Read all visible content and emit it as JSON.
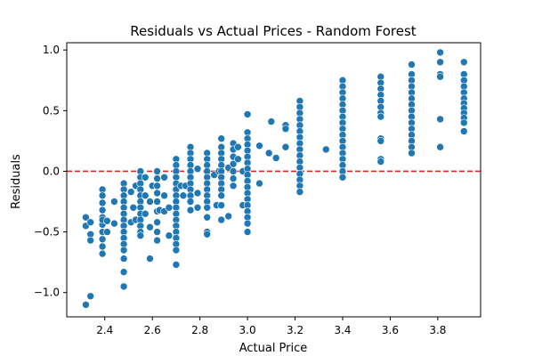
{
  "chart_data": {
    "type": "scatter",
    "title": "Residuals vs Actual Prices - Random Forest",
    "xlabel": "Actual Price",
    "ylabel": "Residuals",
    "xlim": [
      2.24,
      3.98
    ],
    "ylim": [
      -1.2,
      1.06
    ],
    "xticks": [
      2.4,
      2.6,
      2.8,
      3.0,
      3.2,
      3.4,
      3.6,
      3.8
    ],
    "xtick_labels": [
      "2.4",
      "2.6",
      "2.8",
      "3.0",
      "3.2",
      "3.4",
      "3.6",
      "3.8"
    ],
    "yticks": [
      -1.0,
      -0.5,
      0.0,
      0.5,
      1.0
    ],
    "ytick_labels": [
      "−1.0",
      "−0.5",
      "0.0",
      "0.5",
      "1.0"
    ],
    "reference_line": {
      "y": 0.0,
      "color": "#d62728",
      "style": "dashed"
    },
    "marker_color": "#1f77b4",
    "grid": false,
    "points": [
      [
        2.32,
        -0.38
      ],
      [
        2.32,
        -0.45
      ],
      [
        2.32,
        -1.1
      ],
      [
        2.34,
        -1.03
      ],
      [
        2.34,
        -0.42
      ],
      [
        2.34,
        -0.52
      ],
      [
        2.34,
        -0.57
      ],
      [
        2.39,
        -0.15
      ],
      [
        2.39,
        -0.2
      ],
      [
        2.39,
        -0.26
      ],
      [
        2.39,
        -0.32
      ],
      [
        2.39,
        -0.38
      ],
      [
        2.39,
        -0.44
      ],
      [
        2.39,
        -0.5
      ],
      [
        2.39,
        -0.56
      ],
      [
        2.39,
        -0.62
      ],
      [
        2.39,
        -0.68
      ],
      [
        2.39,
        -0.4
      ],
      [
        2.41,
        -0.41
      ],
      [
        2.41,
        -0.5
      ],
      [
        2.44,
        -0.25
      ],
      [
        2.44,
        -0.43
      ],
      [
        2.48,
        -0.1
      ],
      [
        2.48,
        -0.15
      ],
      [
        2.48,
        -0.2
      ],
      [
        2.48,
        -0.25
      ],
      [
        2.48,
        -0.3
      ],
      [
        2.48,
        -0.35
      ],
      [
        2.48,
        -0.4
      ],
      [
        2.48,
        -0.45
      ],
      [
        2.48,
        -0.5
      ],
      [
        2.48,
        -0.55
      ],
      [
        2.48,
        -0.6
      ],
      [
        2.48,
        -0.65
      ],
      [
        2.48,
        -0.72
      ],
      [
        2.48,
        -0.83
      ],
      [
        2.48,
        -0.95
      ],
      [
        2.51,
        -0.17
      ],
      [
        2.51,
        -0.42
      ],
      [
        2.52,
        -0.3
      ],
      [
        2.53,
        -0.12
      ],
      [
        2.53,
        -0.4
      ],
      [
        2.55,
        0.0
      ],
      [
        2.55,
        -0.05
      ],
      [
        2.55,
        -0.1
      ],
      [
        2.55,
        -0.15
      ],
      [
        2.55,
        -0.2
      ],
      [
        2.55,
        -0.25
      ],
      [
        2.55,
        -0.3
      ],
      [
        2.55,
        -0.35
      ],
      [
        2.55,
        -0.4
      ],
      [
        2.55,
        -0.45
      ],
      [
        2.55,
        -0.5
      ],
      [
        2.55,
        -0.53
      ],
      [
        2.57,
        -0.05
      ],
      [
        2.57,
        -0.2
      ],
      [
        2.57,
        -0.35
      ],
      [
        2.59,
        -0.25
      ],
      [
        2.59,
        -0.46
      ],
      [
        2.59,
        -0.72
      ],
      [
        2.6,
        -0.12
      ],
      [
        2.62,
        0.0
      ],
      [
        2.62,
        -0.06
      ],
      [
        2.62,
        -0.12
      ],
      [
        2.62,
        -0.18
      ],
      [
        2.62,
        -0.25
      ],
      [
        2.62,
        -0.33
      ],
      [
        2.62,
        -0.42
      ],
      [
        2.62,
        -0.5
      ],
      [
        2.62,
        -0.57
      ],
      [
        2.63,
        -0.32
      ],
      [
        2.65,
        -0.05
      ],
      [
        2.65,
        -0.2
      ],
      [
        2.65,
        -0.33
      ],
      [
        2.67,
        -0.3
      ],
      [
        2.67,
        -0.53
      ],
      [
        2.7,
        0.1
      ],
      [
        2.7,
        0.05
      ],
      [
        2.7,
        0.0
      ],
      [
        2.7,
        -0.05
      ],
      [
        2.7,
        -0.1
      ],
      [
        2.7,
        -0.15
      ],
      [
        2.7,
        -0.2
      ],
      [
        2.7,
        -0.25
      ],
      [
        2.7,
        -0.3
      ],
      [
        2.7,
        -0.35
      ],
      [
        2.7,
        -0.4
      ],
      [
        2.7,
        -0.45
      ],
      [
        2.7,
        -0.5
      ],
      [
        2.7,
        -0.55
      ],
      [
        2.7,
        -0.6
      ],
      [
        2.7,
        -0.65
      ],
      [
        2.7,
        -0.77
      ],
      [
        2.72,
        -0.12
      ],
      [
        2.73,
        -0.2
      ],
      [
        2.74,
        -0.12
      ],
      [
        2.76,
        0.2
      ],
      [
        2.76,
        0.15
      ],
      [
        2.76,
        0.1
      ],
      [
        2.76,
        0.05
      ],
      [
        2.76,
        0.0
      ],
      [
        2.76,
        -0.05
      ],
      [
        2.76,
        -0.1
      ],
      [
        2.76,
        -0.15
      ],
      [
        2.76,
        -0.2
      ],
      [
        2.76,
        -0.25
      ],
      [
        2.76,
        -0.32
      ],
      [
        2.79,
        0.02
      ],
      [
        2.79,
        -0.18
      ],
      [
        2.79,
        -0.3
      ],
      [
        2.83,
        0.15
      ],
      [
        2.83,
        0.1
      ],
      [
        2.83,
        0.05
      ],
      [
        2.83,
        0.0
      ],
      [
        2.83,
        -0.05
      ],
      [
        2.83,
        -0.1
      ],
      [
        2.83,
        -0.15
      ],
      [
        2.83,
        -0.2
      ],
      [
        2.83,
        -0.25
      ],
      [
        2.83,
        -0.3
      ],
      [
        2.83,
        -0.38
      ],
      [
        2.83,
        -0.5
      ],
      [
        2.83,
        -0.52
      ],
      [
        2.86,
        -0.03
      ],
      [
        2.87,
        -0.28
      ],
      [
        2.88,
        0.0
      ],
      [
        2.89,
        0.27
      ],
      [
        2.89,
        0.2
      ],
      [
        2.89,
        0.15
      ],
      [
        2.89,
        0.1
      ],
      [
        2.89,
        0.05
      ],
      [
        2.89,
        0.0
      ],
      [
        2.89,
        -0.05
      ],
      [
        2.89,
        -0.1
      ],
      [
        2.89,
        -0.15
      ],
      [
        2.89,
        -0.2
      ],
      [
        2.89,
        -0.28
      ],
      [
        2.89,
        -0.4
      ],
      [
        2.92,
        0.03
      ],
      [
        2.92,
        -0.37
      ],
      [
        2.94,
        0.23
      ],
      [
        2.94,
        0.18
      ],
      [
        2.94,
        0.12
      ],
      [
        2.94,
        0.06
      ],
      [
        2.94,
        0.0
      ],
      [
        2.94,
        -0.06
      ],
      [
        2.94,
        -0.12
      ],
      [
        2.96,
        0.2
      ],
      [
        2.96,
        0.1
      ],
      [
        2.98,
        0.0
      ],
      [
        2.98,
        -0.28
      ],
      [
        3.0,
        0.47
      ],
      [
        3.0,
        0.32
      ],
      [
        3.0,
        0.27
      ],
      [
        3.0,
        0.22
      ],
      [
        3.0,
        0.17
      ],
      [
        3.0,
        0.12
      ],
      [
        3.0,
        0.07
      ],
      [
        3.0,
        0.02
      ],
      [
        3.0,
        -0.03
      ],
      [
        3.0,
        -0.08
      ],
      [
        3.0,
        -0.13
      ],
      [
        3.0,
        -0.18
      ],
      [
        3.0,
        -0.23
      ],
      [
        3.0,
        -0.28
      ],
      [
        3.0,
        -0.33
      ],
      [
        3.0,
        -0.38
      ],
      [
        3.0,
        -0.43
      ],
      [
        3.0,
        -0.5
      ],
      [
        3.05,
        0.21
      ],
      [
        3.05,
        -0.1
      ],
      [
        3.09,
        0.15
      ],
      [
        3.1,
        0.41
      ],
      [
        3.12,
        0.11
      ],
      [
        3.16,
        0.38
      ],
      [
        3.16,
        0.35
      ],
      [
        3.16,
        0.2
      ],
      [
        3.22,
        0.58
      ],
      [
        3.22,
        0.53
      ],
      [
        3.22,
        0.48
      ],
      [
        3.22,
        0.43
      ],
      [
        3.22,
        0.38
      ],
      [
        3.22,
        0.33
      ],
      [
        3.22,
        0.28
      ],
      [
        3.22,
        0.23
      ],
      [
        3.22,
        0.18
      ],
      [
        3.22,
        0.13
      ],
      [
        3.22,
        0.08
      ],
      [
        3.22,
        0.03
      ],
      [
        3.22,
        -0.02
      ],
      [
        3.22,
        -0.07
      ],
      [
        3.22,
        -0.12
      ],
      [
        3.22,
        -0.17
      ],
      [
        3.33,
        0.18
      ],
      [
        3.4,
        0.75
      ],
      [
        3.4,
        0.7
      ],
      [
        3.4,
        0.65
      ],
      [
        3.4,
        0.6
      ],
      [
        3.4,
        0.55
      ],
      [
        3.4,
        0.5
      ],
      [
        3.4,
        0.45
      ],
      [
        3.4,
        0.4
      ],
      [
        3.4,
        0.35
      ],
      [
        3.4,
        0.3
      ],
      [
        3.4,
        0.25
      ],
      [
        3.4,
        0.2
      ],
      [
        3.4,
        0.15
      ],
      [
        3.4,
        0.1
      ],
      [
        3.4,
        0.05
      ],
      [
        3.4,
        0.0
      ],
      [
        3.4,
        -0.05
      ],
      [
        3.56,
        0.78
      ],
      [
        3.56,
        0.73
      ],
      [
        3.56,
        0.68
      ],
      [
        3.56,
        0.63
      ],
      [
        3.56,
        0.58
      ],
      [
        3.56,
        0.53
      ],
      [
        3.56,
        0.48
      ],
      [
        3.56,
        0.45
      ],
      [
        3.56,
        0.27
      ],
      [
        3.56,
        0.25
      ],
      [
        3.56,
        0.1
      ],
      [
        3.56,
        0.08
      ],
      [
        3.69,
        0.88
      ],
      [
        3.69,
        0.8
      ],
      [
        3.69,
        0.75
      ],
      [
        3.69,
        0.7
      ],
      [
        3.69,
        0.65
      ],
      [
        3.69,
        0.6
      ],
      [
        3.69,
        0.55
      ],
      [
        3.69,
        0.5
      ],
      [
        3.69,
        0.45
      ],
      [
        3.69,
        0.4
      ],
      [
        3.69,
        0.35
      ],
      [
        3.69,
        0.3
      ],
      [
        3.69,
        0.25
      ],
      [
        3.69,
        0.2
      ],
      [
        3.69,
        0.15
      ],
      [
        3.81,
        0.98
      ],
      [
        3.81,
        0.9
      ],
      [
        3.81,
        0.8
      ],
      [
        3.81,
        0.78
      ],
      [
        3.81,
        0.43
      ],
      [
        3.81,
        0.2
      ],
      [
        3.91,
        0.9
      ],
      [
        3.91,
        0.8
      ],
      [
        3.91,
        0.75
      ],
      [
        3.91,
        0.7
      ],
      [
        3.91,
        0.65
      ],
      [
        3.91,
        0.6
      ],
      [
        3.91,
        0.56
      ],
      [
        3.91,
        0.52
      ],
      [
        3.91,
        0.48
      ],
      [
        3.91,
        0.44
      ],
      [
        3.91,
        0.4
      ],
      [
        3.91,
        0.33
      ]
    ]
  }
}
